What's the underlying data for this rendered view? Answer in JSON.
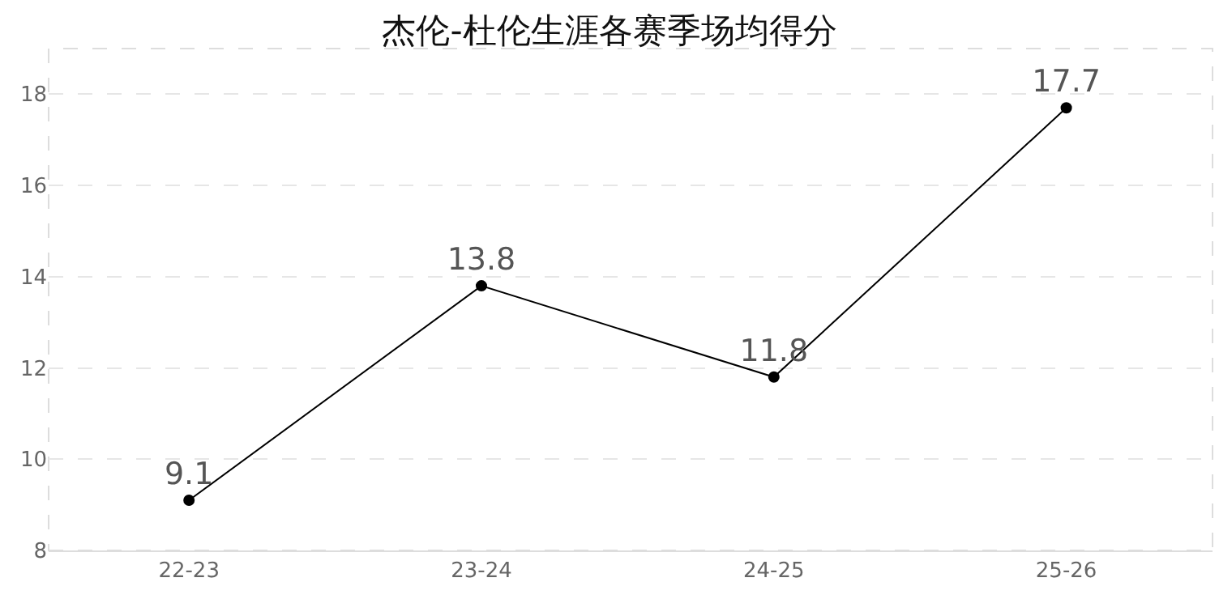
{
  "chart_data": {
    "type": "line",
    "title": "杰伦-杜伦生涯各赛季场均得分",
    "categories": [
      "22-23",
      "23-24",
      "24-25",
      "25-26"
    ],
    "series": [
      {
        "color": "#000000",
        "values": [
          9.1,
          13.8,
          11.8,
          17.7
        ]
      }
    ],
    "ylim": [
      8,
      19
    ],
    "yticks": [
      8,
      10,
      12,
      14,
      16,
      18
    ],
    "grid": "y",
    "marker": "circle",
    "line_style": "solid",
    "data_labels": true
  }
}
